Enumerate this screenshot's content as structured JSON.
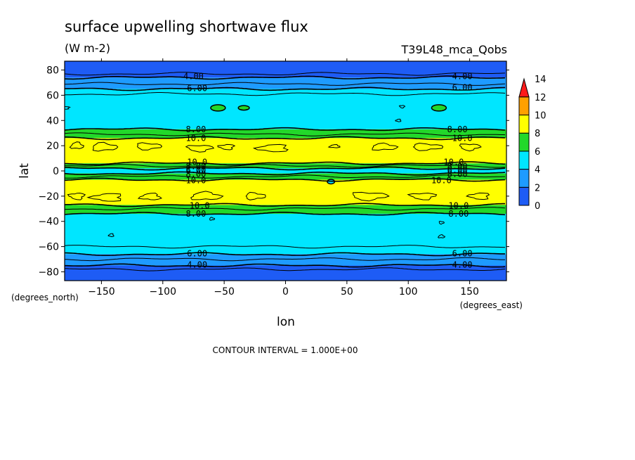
{
  "chart_data": {
    "type": "heatmap",
    "subtype": "filled-contour",
    "title": "surface upwelling shortwave flux",
    "units": "(W m-2)",
    "run_label": "T39L48_mca_Qobs",
    "xlabel": "lon",
    "ylabel": "lat",
    "x_units": "(degrees_east)",
    "y_units": "(degrees_north)",
    "xlim": [
      -180,
      180
    ],
    "ylim": [
      -87,
      87
    ],
    "x_ticks": [
      -150,
      -100,
      -50,
      0,
      50,
      100,
      150
    ],
    "y_ticks": [
      80,
      60,
      40,
      20,
      0,
      -20,
      -40,
      -60,
      -80
    ],
    "contour_interval_text": "CONTOUR INTERVAL = 1.000E+00",
    "colorbar": {
      "levels": [
        0,
        2,
        4,
        6,
        8,
        10,
        12,
        14
      ],
      "colors": [
        "#1e5cf5",
        "#1e9bff",
        "#00e6ff",
        "#22d82a",
        "#ffff00",
        "#ffa000",
        "#ff1a1a"
      ],
      "extend": "max"
    },
    "bands": [
      {
        "lat_from": 74,
        "lat_to": 87,
        "level": "0-4",
        "color": "#1e5cf5"
      },
      {
        "lat_from": 65,
        "lat_to": 74,
        "level": "4-6",
        "color": "#1e9bff"
      },
      {
        "lat_from": 33,
        "lat_to": 65,
        "level": "6-8",
        "color": "#00e6ff"
      },
      {
        "lat_from": 26,
        "lat_to": 33,
        "level": "8-10",
        "color": "#22d82a"
      },
      {
        "lat_from": 6,
        "lat_to": 26,
        "level": "10-12",
        "color": "#ffff00"
      },
      {
        "lat_from": 2,
        "lat_to": 6,
        "level": "8-10",
        "color": "#22d82a"
      },
      {
        "lat_from": -2,
        "lat_to": 2,
        "level": "6-8",
        "color": "#00e6ff"
      },
      {
        "lat_from": -7,
        "lat_to": -2,
        "level": "8-10",
        "color": "#22d82a"
      },
      {
        "lat_from": -27,
        "lat_to": -7,
        "level": "10-12",
        "color": "#ffff00"
      },
      {
        "lat_from": -34,
        "lat_to": -27,
        "level": "8-10",
        "color": "#22d82a"
      },
      {
        "lat_from": -66,
        "lat_to": -34,
        "level": "6-8",
        "color": "#00e6ff"
      },
      {
        "lat_from": -75,
        "lat_to": -66,
        "level": "4-6",
        "color": "#1e9bff"
      },
      {
        "lat_from": -87,
        "lat_to": -75,
        "level": "0-4",
        "color": "#1e5cf5"
      }
    ],
    "contours": [
      {
        "lat": 77,
        "width": 1
      },
      {
        "lat": 74,
        "width": 1.6
      },
      {
        "lat": 69,
        "width": 1
      },
      {
        "lat": 65,
        "width": 1.6
      },
      {
        "lat": 61,
        "width": 1
      },
      {
        "lat": 33,
        "width": 1.6
      },
      {
        "lat": 29,
        "width": 1
      },
      {
        "lat": 26,
        "width": 1.6
      },
      {
        "lat": 6,
        "width": 1.6
      },
      {
        "lat": 4,
        "width": 1
      },
      {
        "lat": 2,
        "width": 1.6
      },
      {
        "lat": -2,
        "width": 1.6
      },
      {
        "lat": -4.5,
        "width": 1
      },
      {
        "lat": -7,
        "width": 1.6
      },
      {
        "lat": -27,
        "width": 1.6
      },
      {
        "lat": -30,
        "width": 1
      },
      {
        "lat": -34,
        "width": 1.6
      },
      {
        "lat": -60,
        "width": 1
      },
      {
        "lat": -66,
        "width": 1.6
      },
      {
        "lat": -70,
        "width": 1
      },
      {
        "lat": -75,
        "width": 1.6
      },
      {
        "lat": -78,
        "width": 1
      }
    ],
    "contour_labels": [
      {
        "text": "4.00",
        "lon": -75,
        "lat": 75
      },
      {
        "text": "4.00",
        "lon": 144,
        "lat": 75
      },
      {
        "text": "6.00",
        "lon": -72,
        "lat": 65.5
      },
      {
        "text": "6.00",
        "lon": 144,
        "lat": 66
      },
      {
        "text": "8.00",
        "lon": -73,
        "lat": 33
      },
      {
        "text": "10.0",
        "lon": -73,
        "lat": 26
      },
      {
        "text": "8.00",
        "lon": 140,
        "lat": 33
      },
      {
        "text": "10.0",
        "lon": 144,
        "lat": 26
      },
      {
        "text": "10.0",
        "lon": -72,
        "lat": 7
      },
      {
        "text": "8.00",
        "lon": -73,
        "lat": 3.5
      },
      {
        "text": "6.00",
        "lon": -73,
        "lat": 0.5
      },
      {
        "text": "8.00",
        "lon": -73,
        "lat": -2.5
      },
      {
        "text": "10.0",
        "lon": -73,
        "lat": -7.5
      },
      {
        "text": "10.0",
        "lon": 137,
        "lat": 7
      },
      {
        "text": "8.00",
        "lon": 140,
        "lat": 3.5
      },
      {
        "text": "6.00",
        "lon": 140,
        "lat": 0.5
      },
      {
        "text": "8.00",
        "lon": 140,
        "lat": -2.5
      },
      {
        "text": "10.0",
        "lon": 127,
        "lat": -7.5
      },
      {
        "text": "10.0",
        "lon": -70,
        "lat": -27.5
      },
      {
        "text": "8.00",
        "lon": -73,
        "lat": -34
      },
      {
        "text": "10.0",
        "lon": 141,
        "lat": -27.5
      },
      {
        "text": "8.00",
        "lon": 141,
        "lat": -34
      },
      {
        "text": "6.00",
        "lon": -72,
        "lat": -65.5
      },
      {
        "text": "4.00",
        "lon": -72,
        "lat": -74.5
      },
      {
        "text": "6.00",
        "lon": 144,
        "lat": -65.5
      },
      {
        "text": "4.00",
        "lon": 144,
        "lat": -74.5
      }
    ],
    "patches": [
      {
        "lon": -55,
        "lat": 50,
        "rlon": 6,
        "rlat": 2.5,
        "color": "#22d82a"
      },
      {
        "lon": -34,
        "lat": 50,
        "rlon": 4.5,
        "rlat": 1.8,
        "color": "#22d82a"
      },
      {
        "lon": 125,
        "lat": 50,
        "rlon": 6,
        "rlat": 2.5,
        "color": "#22d82a"
      },
      {
        "lon": 37,
        "lat": -8.5,
        "rlon": 3,
        "rlat": 1.8,
        "color": "#00e6ff"
      }
    ],
    "islands": [
      {
        "lon": -170,
        "lat": 20,
        "rlon": 5,
        "rlat": 2.5
      },
      {
        "lon": -148,
        "lat": 19,
        "rlon": 10,
        "rlat": 3
      },
      {
        "lon": -112,
        "lat": 19.5,
        "rlon": 10,
        "rlat": 2.5
      },
      {
        "lon": -70,
        "lat": 18,
        "rlon": 10,
        "rlat": 2.5
      },
      {
        "lon": -48,
        "lat": 19,
        "rlon": 6,
        "rlat": 2
      },
      {
        "lon": -10,
        "lat": 18,
        "rlon": 12,
        "rlat": 2.8
      },
      {
        "lon": 40,
        "lat": 19.5,
        "rlon": 4,
        "rlat": 1.2
      },
      {
        "lon": 80,
        "lat": 19,
        "rlon": 10,
        "rlat": 2.5
      },
      {
        "lon": 115,
        "lat": 19,
        "rlon": 12,
        "rlat": 2.5
      },
      {
        "lon": 150,
        "lat": 19,
        "rlon": 8,
        "rlat": 2.5
      },
      {
        "lon": -170,
        "lat": -20,
        "rlon": 6,
        "rlat": 2.5
      },
      {
        "lon": -145,
        "lat": -21,
        "rlon": 12,
        "rlat": 3
      },
      {
        "lon": -110,
        "lat": -20.5,
        "rlon": 8,
        "rlat": 2.5
      },
      {
        "lon": -65,
        "lat": -20,
        "rlon": 12,
        "rlat": 3
      },
      {
        "lon": -25,
        "lat": -20,
        "rlon": 8,
        "rlat": 2.5
      },
      {
        "lon": 68,
        "lat": -20,
        "rlon": 14,
        "rlat": 3
      },
      {
        "lon": 112,
        "lat": -20,
        "rlon": 10,
        "rlat": 2.5
      },
      {
        "lon": 158,
        "lat": -20,
        "rlon": 8,
        "rlat": 2.5
      },
      {
        "lon": -142,
        "lat": -51,
        "rlon": 2,
        "rlat": 1.2
      },
      {
        "lon": 127,
        "lat": -52,
        "rlon": 2.5,
        "rlat": 1.2
      },
      {
        "lon": -60,
        "lat": -38,
        "rlon": 2,
        "rlat": 1
      },
      {
        "lon": 127,
        "lat": -41,
        "rlon": 2,
        "rlat": 1
      },
      {
        "lon": 95,
        "lat": 51,
        "rlon": 2,
        "rlat": 1
      },
      {
        "lon": -180,
        "lat": 50,
        "rlon": 4,
        "rlat": 1
      },
      {
        "lon": 92,
        "lat": 40,
        "rlon": 2,
        "rlat": 1
      }
    ]
  }
}
